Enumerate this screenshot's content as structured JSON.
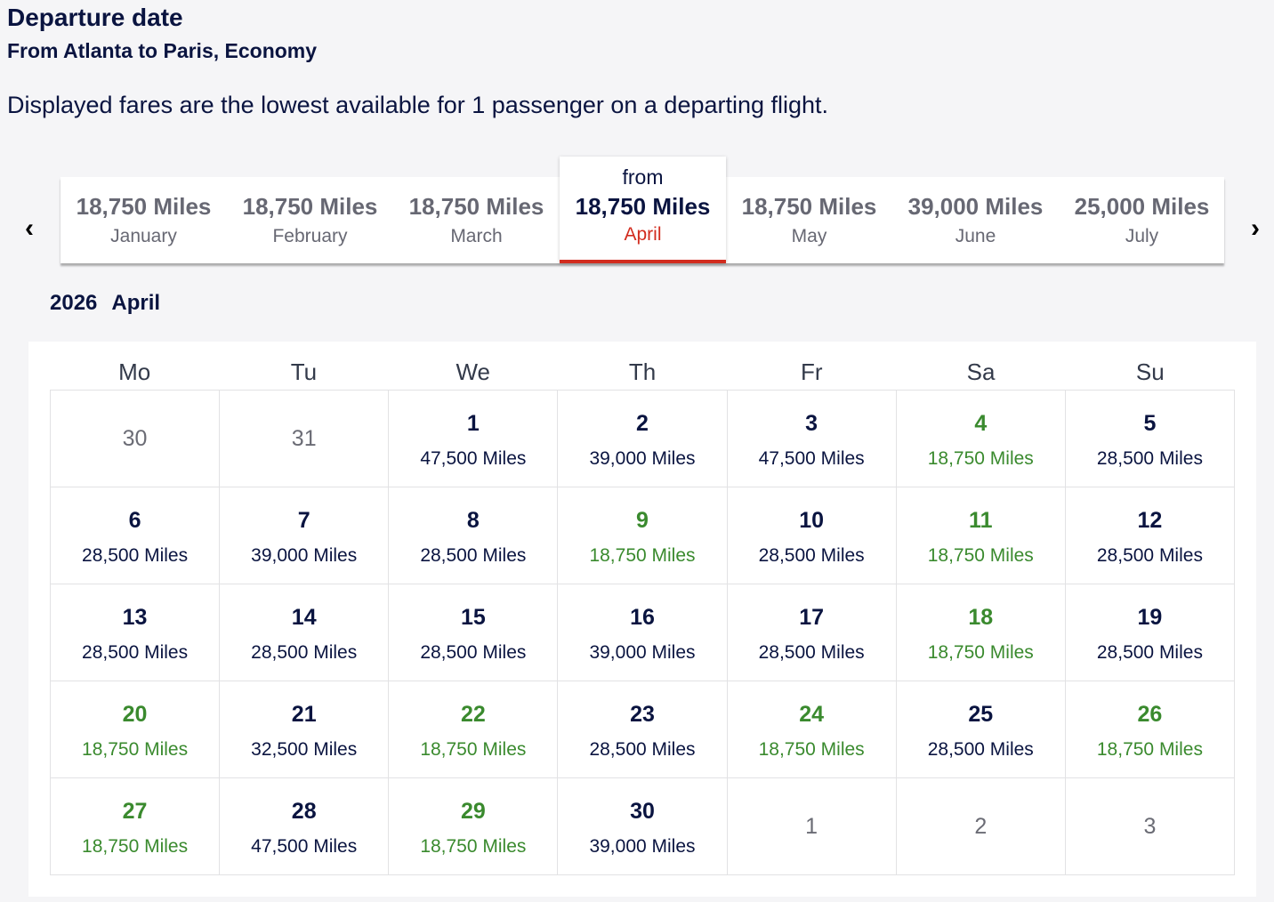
{
  "header": {
    "title": "Departure date",
    "subtitle": "From Atlanta to Paris, Economy",
    "note": "Displayed fares are the lowest available for 1 passenger on a departing flight."
  },
  "colors": {
    "lowest_fare": "#3a8a2e",
    "selected_accent": "#d22c1f",
    "text": "#0a1440"
  },
  "carousel": {
    "prev_icon": "chevron-left-icon",
    "next_icon": "chevron-right-icon",
    "prev": "‹",
    "next": "›",
    "from_label": "from",
    "months": [
      {
        "miles": "18,750 Miles",
        "name": "January"
      },
      {
        "miles": "18,750 Miles",
        "name": "February"
      },
      {
        "miles": "18,750 Miles",
        "name": "March"
      },
      {
        "miles": "18,750 Miles",
        "name": "April",
        "selected": true
      },
      {
        "miles": "18,750 Miles",
        "name": "May"
      },
      {
        "miles": "39,000 Miles",
        "name": "June"
      },
      {
        "miles": "25,000 Miles",
        "name": "July"
      }
    ]
  },
  "calendar": {
    "year": "2026",
    "month": "April",
    "weekdays": [
      "Mo",
      "Tu",
      "We",
      "Th",
      "Fr",
      "Sa",
      "Su"
    ],
    "days": [
      {
        "d": "30",
        "out": true
      },
      {
        "d": "31",
        "out": true
      },
      {
        "d": "1",
        "p": "47,500 Miles"
      },
      {
        "d": "2",
        "p": "39,000 Miles"
      },
      {
        "d": "3",
        "p": "47,500 Miles"
      },
      {
        "d": "4",
        "p": "18,750 Miles",
        "low": true
      },
      {
        "d": "5",
        "p": "28,500 Miles"
      },
      {
        "d": "6",
        "p": "28,500 Miles"
      },
      {
        "d": "7",
        "p": "39,000 Miles"
      },
      {
        "d": "8",
        "p": "28,500 Miles"
      },
      {
        "d": "9",
        "p": "18,750 Miles",
        "low": true
      },
      {
        "d": "10",
        "p": "28,500 Miles"
      },
      {
        "d": "11",
        "p": "18,750 Miles",
        "low": true
      },
      {
        "d": "12",
        "p": "28,500 Miles"
      },
      {
        "d": "13",
        "p": "28,500 Miles"
      },
      {
        "d": "14",
        "p": "28,500 Miles"
      },
      {
        "d": "15",
        "p": "28,500 Miles"
      },
      {
        "d": "16",
        "p": "39,000 Miles"
      },
      {
        "d": "17",
        "p": "28,500 Miles"
      },
      {
        "d": "18",
        "p": "18,750 Miles",
        "low": true
      },
      {
        "d": "19",
        "p": "28,500 Miles"
      },
      {
        "d": "20",
        "p": "18,750 Miles",
        "low": true
      },
      {
        "d": "21",
        "p": "32,500 Miles"
      },
      {
        "d": "22",
        "p": "18,750 Miles",
        "low": true
      },
      {
        "d": "23",
        "p": "28,500 Miles"
      },
      {
        "d": "24",
        "p": "18,750 Miles",
        "low": true
      },
      {
        "d": "25",
        "p": "28,500 Miles"
      },
      {
        "d": "26",
        "p": "18,750 Miles",
        "low": true
      },
      {
        "d": "27",
        "p": "18,750 Miles",
        "low": true
      },
      {
        "d": "28",
        "p": "47,500 Miles"
      },
      {
        "d": "29",
        "p": "18,750 Miles",
        "low": true
      },
      {
        "d": "30",
        "p": "39,000 Miles"
      },
      {
        "d": "1",
        "out": true
      },
      {
        "d": "2",
        "out": true
      },
      {
        "d": "3",
        "out": true
      }
    ]
  }
}
